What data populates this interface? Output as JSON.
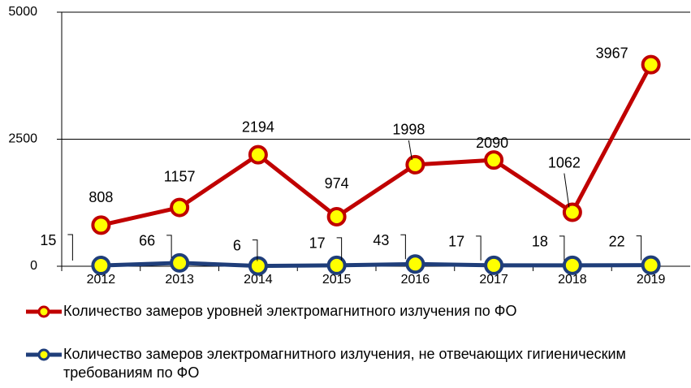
{
  "chart_data": {
    "type": "line",
    "categories": [
      "2012",
      "2013",
      "2014",
      "2015",
      "2016",
      "2017",
      "2018",
      "2019"
    ],
    "series": [
      {
        "name": "Количество замеров уровней электромагнитного излучения по ФО",
        "color": "#c00000",
        "values": [
          808,
          1157,
          2194,
          974,
          1998,
          2090,
          1062,
          3967
        ]
      },
      {
        "name": "Количество замеров электромагнитного излучения, не отвечающих гигиеническим требованиям по ФО",
        "color": "#1f3e7a",
        "values": [
          15,
          66,
          6,
          17,
          43,
          17,
          18,
          22
        ]
      }
    ],
    "marker_color": "#ffff00",
    "ylim": [
      0,
      5000
    ],
    "yticks": [
      0,
      2500,
      5000
    ],
    "grid": true
  }
}
